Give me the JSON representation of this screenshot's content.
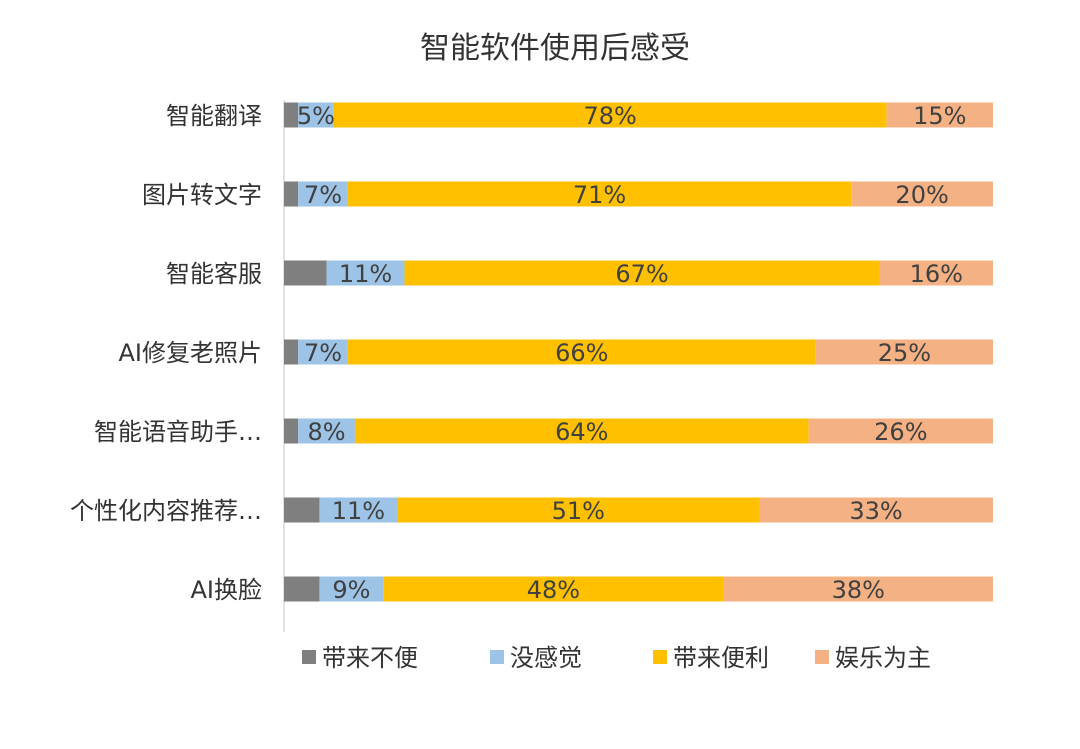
{
  "chart_data": {
    "type": "bar",
    "orientation": "horizontal",
    "stacked": true,
    "title": "智能软件使用后感受",
    "categories": [
      "智能翻译",
      "图片转文字",
      "智能客服",
      "AI修复老照片",
      "智能语音助手…",
      "个性化内容推荐…",
      "AI换脸"
    ],
    "series": [
      {
        "name": "带来不便",
        "color": "#7f7f7f",
        "values": [
          2,
          2,
          6,
          2,
          2,
          5,
          5
        ],
        "show_labels": false
      },
      {
        "name": "没感觉",
        "color": "#9dc3e6",
        "values": [
          5,
          7,
          11,
          7,
          8,
          11,
          9
        ],
        "show_labels": true
      },
      {
        "name": "带来便利",
        "color": "#ffc000",
        "values": [
          78,
          71,
          67,
          66,
          64,
          51,
          48
        ],
        "show_labels": true
      },
      {
        "name": "娱乐为主",
        "color": "#f4b183",
        "values": [
          15,
          20,
          16,
          25,
          26,
          33,
          38
        ],
        "show_labels": true
      }
    ],
    "value_suffix": "%",
    "xlim": [
      0,
      100
    ],
    "grid": false,
    "legend": "bottom"
  }
}
